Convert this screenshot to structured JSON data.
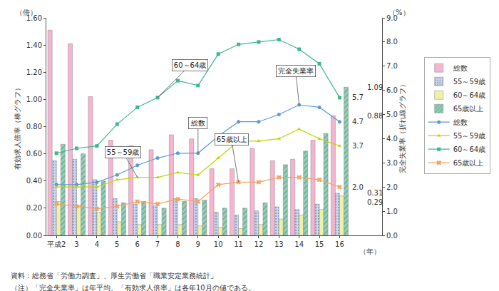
{
  "chart_data": {
    "type": "bar",
    "categories": [
      "平成2",
      "3",
      "4",
      "5",
      "6",
      "7",
      "8",
      "9",
      "10",
      "11",
      "12",
      "13",
      "14",
      "15",
      "16"
    ],
    "series": [
      {
        "name": "総数",
        "type": "bar",
        "color": "#f7b4d0",
        "marker": "solid",
        "values": [
          1.51,
          1.41,
          1.02,
          0.7,
          0.66,
          0.63,
          0.74,
          0.71,
          0.49,
          0.49,
          0.64,
          0.55,
          0.56,
          0.7,
          0.88
        ]
      },
      {
        "name": "55～59歳",
        "type": "bar",
        "color": "#c9d6f2",
        "marker": "dots",
        "values": [
          0.55,
          0.56,
          0.41,
          0.27,
          0.23,
          0.22,
          0.27,
          0.27,
          0.17,
          0.15,
          0.18,
          0.21,
          0.19,
          0.23,
          0.31
        ]
      },
      {
        "name": "60～64歳",
        "type": "bar",
        "color": "#eef2a6",
        "marker": "solid",
        "values": [
          0.25,
          0.22,
          0.17,
          0.1,
          0.08,
          0.08,
          0.08,
          0.07,
          0.06,
          0.05,
          0.08,
          0.12,
          0.15,
          0.19,
          0.29
        ]
      },
      {
        "name": "65歳以上",
        "type": "bar",
        "color": "#8fd1b4",
        "marker": "hatch",
        "values": [
          0.67,
          0.6,
          0.4,
          0.24,
          0.25,
          0.2,
          0.25,
          0.26,
          0.2,
          0.2,
          0.24,
          0.52,
          0.62,
          0.75,
          1.09
        ]
      },
      {
        "name": "総数",
        "type": "line",
        "axis": "y2",
        "color": "#5b9bd5",
        "marker": "circle",
        "values": [
          2.1,
          2.1,
          2.2,
          2.5,
          2.9,
          3.2,
          3.4,
          3.4,
          4.1,
          4.7,
          4.7,
          5.0,
          5.4,
          5.3,
          4.7
        ]
      },
      {
        "name": "55～59歳",
        "type": "line",
        "axis": "y2",
        "color": "#c4d400",
        "marker": "triangle",
        "values": [
          2.0,
          2.0,
          2.0,
          2.3,
          2.4,
          2.4,
          2.6,
          2.5,
          3.2,
          3.9,
          3.9,
          4.0,
          4.4,
          4.0,
          3.7
        ]
      },
      {
        "name": "60～64歳",
        "type": "line",
        "axis": "y2",
        "color": "#3cb88a",
        "marker": "square",
        "values": [
          3.4,
          3.6,
          3.7,
          4.6,
          5.3,
          5.7,
          6.4,
          6.2,
          7.5,
          7.9,
          8.0,
          8.1,
          7.7,
          7.1,
          5.7
        ]
      },
      {
        "name": "65歳以上",
        "type": "line",
        "axis": "y2",
        "color": "#f4a460",
        "marker": "x",
        "values": [
          1.3,
          1.2,
          1.1,
          1.2,
          1.4,
          1.3,
          1.5,
          1.4,
          2.1,
          2.2,
          2.2,
          2.4,
          2.4,
          2.3,
          2.0
        ]
      }
    ],
    "ylim": [
      0,
      1.6
    ],
    "yticks": [
      {
        "value": 0,
        "label": "0.00"
      },
      {
        "value": 0.2,
        "label": "0.20"
      },
      {
        "value": 0.4,
        "label": "0.40"
      },
      {
        "value": 0.6,
        "label": "0.60"
      },
      {
        "value": 0.8,
        "label": "0.80"
      },
      {
        "value": 1.0,
        "label": "1.00"
      },
      {
        "value": 1.2,
        "label": "1.20"
      },
      {
        "value": 1.4,
        "label": "1.40"
      },
      {
        "value": 1.6,
        "label": "1.60"
      }
    ],
    "y2lim": [
      0,
      9
    ],
    "y2ticks": [
      {
        "value": 0,
        "label": "0.0"
      },
      {
        "value": 1,
        "label": "1.0"
      },
      {
        "value": 2,
        "label": "2.0"
      },
      {
        "value": 3,
        "label": "3.0"
      },
      {
        "value": 4,
        "label": "4.0"
      },
      {
        "value": 5,
        "label": "5.0"
      },
      {
        "value": 6,
        "label": "6.0"
      },
      {
        "value": 7,
        "label": "7.0"
      },
      {
        "value": 8,
        "label": "8.0"
      },
      {
        "value": 9,
        "label": "9.0"
      }
    ],
    "y_label": "有効求人倍率（棒グラフ）",
    "y2_label": "完全失業率（折れ線グラフ）",
    "y_unit": "（倍）",
    "y2_unit": "（%）",
    "x_unit": "（年）",
    "grid": false,
    "legend": "right",
    "callouts": [
      {
        "text": "60～64歳",
        "x": "7",
        "y": 5.7,
        "axis": "y2"
      },
      {
        "text": "55～59歳",
        "x": "6",
        "y": 2.4,
        "axis": "y2"
      },
      {
        "text": "総数",
        "x": "9",
        "y": 3.4,
        "axis": "y2"
      },
      {
        "text": "65歳以上",
        "x": "11",
        "y": 2.2,
        "axis": "y2"
      },
      {
        "text": "完全失業率",
        "x": "14",
        "y": 5.4,
        "axis": "y2"
      }
    ],
    "end_labels": [
      {
        "text": "1.09",
        "y": 1.09,
        "axis": "y"
      },
      {
        "text": "5.7",
        "y": 5.7,
        "axis": "y2"
      },
      {
        "text": "4.7",
        "y": 4.7,
        "axis": "y2"
      },
      {
        "text": "3.7",
        "y": 3.7,
        "axis": "y2"
      },
      {
        "text": "0.88",
        "y": 0.88,
        "axis": "y"
      },
      {
        "text": "2.0",
        "y": 2.0,
        "axis": "y2"
      },
      {
        "text": "0.31",
        "y": 0.31,
        "axis": "y"
      },
      {
        "text": "0.29",
        "y": 0.29,
        "axis": "y"
      }
    ],
    "notes": [
      "資料：総務省「労働力調査」、厚生労働省「職業安定業務統計」",
      "（注）「完全失業率」は年平均、「有効求人倍率」は各年10月の値である。"
    ]
  }
}
